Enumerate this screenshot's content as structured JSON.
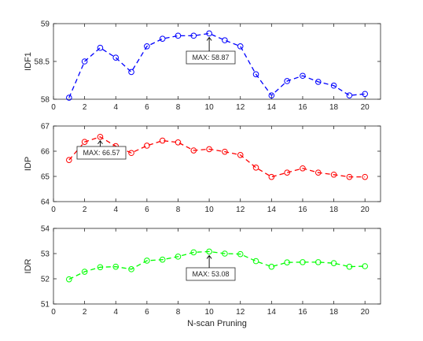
{
  "chart_data": [
    {
      "type": "line",
      "ylabel": "IDF1",
      "xlabel": "",
      "color": "#0000ff",
      "xlim": [
        0,
        21
      ],
      "ylim": [
        58,
        59
      ],
      "yticks": [
        "58",
        "58.5",
        "59"
      ],
      "xticks": [
        "0",
        "2",
        "4",
        "6",
        "8",
        "10",
        "12",
        "14",
        "16",
        "18",
        "20"
      ],
      "x": [
        1,
        2,
        3,
        4,
        5,
        6,
        7,
        8,
        9,
        10,
        11,
        12,
        13,
        14,
        15,
        16,
        17,
        18,
        19,
        20
      ],
      "values": [
        58.02,
        58.5,
        58.68,
        58.55,
        58.36,
        58.7,
        58.8,
        58.84,
        58.84,
        58.87,
        58.78,
        58.7,
        58.33,
        58.05,
        58.24,
        58.31,
        58.23,
        58.18,
        58.05,
        58.07
      ],
      "annotation": {
        "text": "MAX: 58.87",
        "x": 10,
        "y": 58.87
      }
    },
    {
      "type": "line",
      "ylabel": "IDP",
      "xlabel": "",
      "color": "#ff0000",
      "xlim": [
        0,
        21
      ],
      "ylim": [
        64,
        67
      ],
      "yticks": [
        "64",
        "65",
        "66",
        "67"
      ],
      "xticks": [
        "0",
        "2",
        "4",
        "6",
        "8",
        "10",
        "12",
        "14",
        "16",
        "18",
        "20"
      ],
      "x": [
        1,
        2,
        3,
        4,
        5,
        6,
        7,
        8,
        9,
        10,
        11,
        12,
        13,
        14,
        15,
        16,
        17,
        18,
        19,
        20
      ],
      "values": [
        65.65,
        66.37,
        66.57,
        66.2,
        65.93,
        66.22,
        66.42,
        66.35,
        66.03,
        66.08,
        65.98,
        65.85,
        65.35,
        64.98,
        65.15,
        65.32,
        65.15,
        65.07,
        64.98,
        64.98
      ],
      "annotation": {
        "text": "MAX: 66.57",
        "x": 3,
        "y": 66.57
      }
    },
    {
      "type": "line",
      "ylabel": "IDR",
      "xlabel": "N-scan Pruning",
      "color": "#00ff00",
      "xlim": [
        0,
        21
      ],
      "ylim": [
        51,
        54
      ],
      "yticks": [
        "51",
        "52",
        "53",
        "54"
      ],
      "xticks": [
        "0",
        "2",
        "4",
        "6",
        "8",
        "10",
        "12",
        "14",
        "16",
        "18",
        "20"
      ],
      "x": [
        1,
        2,
        3,
        4,
        5,
        6,
        7,
        8,
        9,
        10,
        11,
        12,
        13,
        14,
        15,
        16,
        17,
        18,
        19,
        20
      ],
      "values": [
        51.98,
        52.28,
        52.46,
        52.48,
        52.38,
        52.72,
        52.76,
        52.88,
        53.05,
        53.08,
        53.0,
        52.98,
        52.7,
        52.48,
        52.65,
        52.66,
        52.66,
        52.62,
        52.48,
        52.5
      ],
      "annotation": {
        "text": "MAX: 53.08",
        "x": 10,
        "y": 53.08
      }
    }
  ]
}
